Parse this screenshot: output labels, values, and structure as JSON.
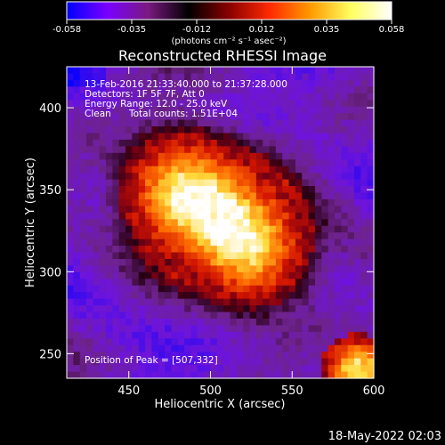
{
  "chart_data": {
    "type": "heatmap",
    "title": "Reconstructed RHESSI Image",
    "xlabel": "Heliocentric X (arcsec)",
    "ylabel": "Heliocentric Y (arcsec)",
    "xlim": [
      412,
      600
    ],
    "ylim": [
      235,
      425
    ],
    "x_ticks": [
      450,
      500,
      550,
      600
    ],
    "y_ticks": [
      250,
      300,
      350,
      400
    ],
    "colorbar": {
      "ticks": [
        "-0.058",
        "-0.035",
        "-0.012",
        "0.012",
        "0.035",
        "0.058"
      ],
      "range": [
        -0.058,
        0.058
      ],
      "unit_label": "(photons cm⁻² s⁻¹ asec⁻²)",
      "colormap": [
        "#0000ff",
        "#7a00ff",
        "#7a1a80",
        "#000000",
        "#8a0000",
        "#ff2a00",
        "#ff9a00",
        "#ffff60",
        "#ffffff"
      ]
    },
    "annotations": {
      "time_range": "13-Feb-2016 21:33:40.000 to 21:37:28.000",
      "detectors": "Detectors: 1F 5F 7F, Att 0",
      "energy_range": "Energy Range: 12.0 - 25.0 keV",
      "algorithm": "Clean",
      "total_counts": "Total counts: 1.51E+04",
      "peak": "Position of Peak = [507,332]"
    },
    "peak_position": [
      507,
      332
    ],
    "sources": [
      {
        "kind": "main-flare",
        "center": [
          500,
          332
        ],
        "peak_value": 0.058
      },
      {
        "kind": "corner-source",
        "center": [
          590,
          240
        ],
        "peak_value": 0.03
      }
    ]
  },
  "footer_date": "18-May-2022 02:03"
}
